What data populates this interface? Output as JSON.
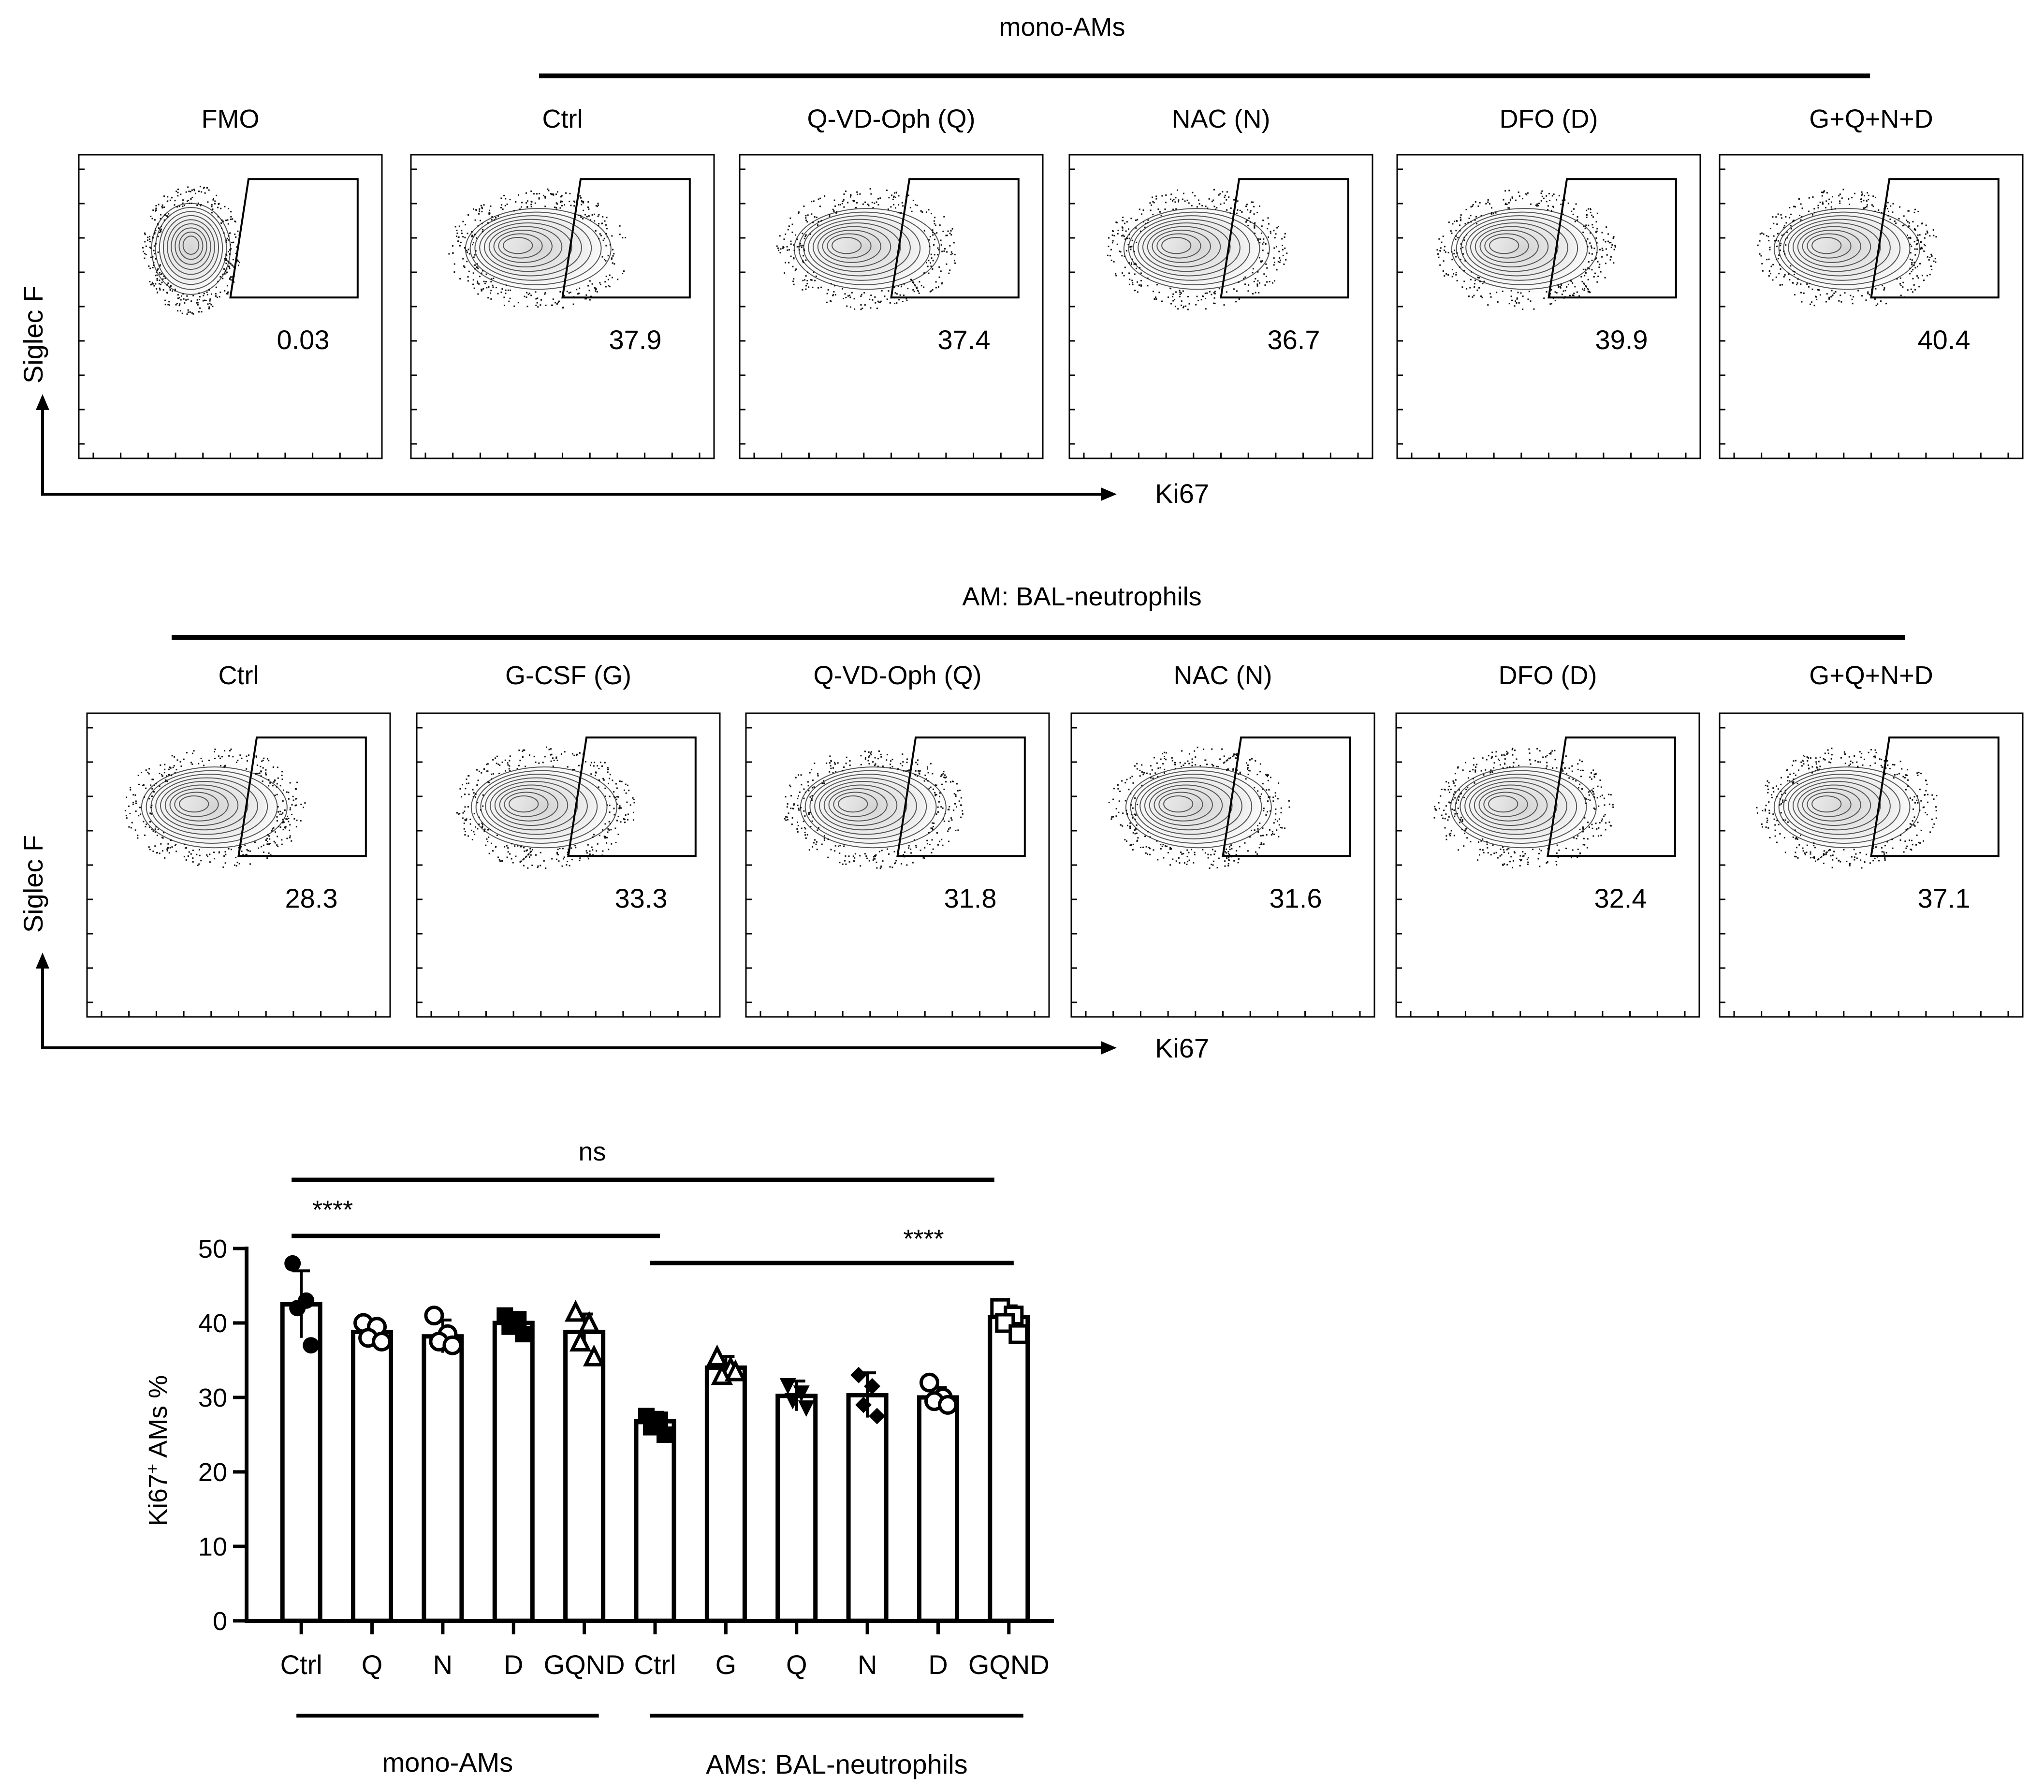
{
  "figure": {
    "row1": {
      "group_label": "mono-AMs",
      "y_axis_label": "Siglec F",
      "x_axis_label": "Ki67",
      "panels": [
        {
          "title": "FMO",
          "gate_percent": "0.03"
        },
        {
          "title": "Ctrl",
          "gate_percent": "37.9"
        },
        {
          "title": "Q-VD-Oph (Q)",
          "gate_percent": "37.4"
        },
        {
          "title": "NAC (N)",
          "gate_percent": "36.7"
        },
        {
          "title": "DFO (D)",
          "gate_percent": "39.9"
        },
        {
          "title": "G+Q+N+D",
          "gate_percent": "40.4"
        }
      ]
    },
    "row2": {
      "group_label": "AM: BAL-neutrophils",
      "y_axis_label": "Siglec F",
      "x_axis_label": "Ki67",
      "panels": [
        {
          "title": "Ctrl",
          "gate_percent": "28.3"
        },
        {
          "title": "G-CSF (G)",
          "gate_percent": "33.3"
        },
        {
          "title": "Q-VD-Oph (Q)",
          "gate_percent": "31.8"
        },
        {
          "title": "NAC (N)",
          "gate_percent": "31.6"
        },
        {
          "title": "DFO (D)",
          "gate_percent": "32.4"
        },
        {
          "title": "G+Q+N+D",
          "gate_percent": "37.1"
        }
      ]
    }
  },
  "chart_data": {
    "type": "bar",
    "ylabel_main": "Ki67",
    "ylabel_sup": "+",
    "ylabel_rest": " AMs %",
    "ylim": [
      0,
      50
    ],
    "yticks": [
      "0",
      "10",
      "20",
      "30",
      "40",
      "50"
    ],
    "categories": [
      "Ctrl",
      "Q",
      "N",
      "D",
      "GQND",
      "Ctrl",
      "G",
      "Q",
      "N",
      "D",
      "GQND"
    ],
    "values": [
      42.5,
      38.8,
      38.2,
      40.0,
      38.8,
      26.8,
      34.0,
      30.2,
      30.3,
      30.0,
      40.8
    ],
    "errors": [
      4.5,
      1.3,
      2.2,
      1.0,
      2.4,
      1.2,
      1.5,
      2.0,
      3.0,
      1.3,
      1.5
    ],
    "points": [
      [
        48.0,
        43.0,
        42.0,
        37.0
      ],
      [
        40.0,
        39.5,
        38.0,
        37.5
      ],
      [
        41.0,
        38.5,
        37.5,
        37.0
      ],
      [
        41.0,
        40.5,
        39.5,
        38.5
      ],
      [
        41.5,
        40.0,
        37.5,
        35.5
      ],
      [
        27.5,
        27.0,
        26.0,
        25.0
      ],
      [
        35.5,
        34.0,
        33.0,
        33.5
      ],
      [
        31.5,
        30.5,
        29.5,
        28.5
      ],
      [
        33.0,
        31.5,
        29.0,
        27.5
      ],
      [
        32.0,
        30.0,
        29.5,
        29.0
      ],
      [
        42.0,
        41.0,
        40.0,
        38.5
      ]
    ],
    "markers": [
      "circle",
      "circle-half",
      "circle-half",
      "square",
      "triangle",
      "square",
      "triangle",
      "triangle-down",
      "diamond",
      "circle-open",
      "square-open"
    ],
    "groups": [
      {
        "label": "mono-AMs"
      },
      {
        "label": "AMs: BAL-neutrophils"
      }
    ],
    "significance": [
      {
        "label": "ns"
      },
      {
        "label": "****"
      },
      {
        "label": "****"
      }
    ]
  }
}
